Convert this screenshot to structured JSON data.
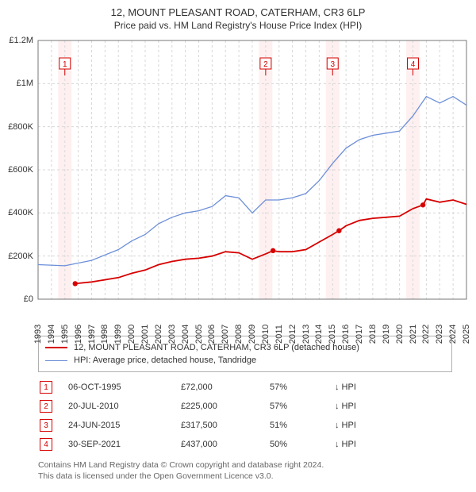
{
  "title_line1": "12, MOUNT PLEASANT ROAD, CATERHAM, CR3 6LP",
  "title_line2": "Price paid vs. HM Land Registry's House Price Index (HPI)",
  "chart": {
    "type": "line",
    "background_color": "#ffffff",
    "plot_border_color": "#777777",
    "grid_color": "#d8d8d8",
    "grid_dash": "3,3",
    "ylabel_fontsize": 11,
    "xlabel_fontsize": 11,
    "ylim": [
      0,
      1200000
    ],
    "ytick_step": 200000,
    "ytick_labels": [
      "£0",
      "£200K",
      "£400K",
      "£600K",
      "£800K",
      "£1M",
      "£1.2M"
    ],
    "xlim": [
      1993,
      2025
    ],
    "xticks": [
      1993,
      1994,
      1995,
      1996,
      1997,
      1998,
      1999,
      2000,
      2001,
      2002,
      2003,
      2004,
      2005,
      2006,
      2007,
      2008,
      2009,
      2010,
      2011,
      2012,
      2013,
      2014,
      2015,
      2016,
      2017,
      2018,
      2019,
      2020,
      2021,
      2022,
      2023,
      2024,
      2025
    ],
    "highlight_bands": {
      "years": [
        1995,
        2010,
        2015,
        2021
      ],
      "fill": "#fde3e3",
      "opacity": 0.55
    },
    "series_hpi": {
      "label": "HPI: Average price, detached house, Tandridge",
      "color": "#6c8fd8",
      "line_width": 1.3,
      "data": [
        [
          1993,
          160000
        ],
        [
          1995,
          155000
        ],
        [
          1997,
          180000
        ],
        [
          1999,
          230000
        ],
        [
          2000,
          270000
        ],
        [
          2001,
          300000
        ],
        [
          2002,
          350000
        ],
        [
          2003,
          380000
        ],
        [
          2004,
          400000
        ],
        [
          2005,
          410000
        ],
        [
          2006,
          430000
        ],
        [
          2007,
          480000
        ],
        [
          2008,
          470000
        ],
        [
          2009,
          400000
        ],
        [
          2010,
          460000
        ],
        [
          2011,
          460000
        ],
        [
          2012,
          470000
        ],
        [
          2013,
          490000
        ],
        [
          2014,
          550000
        ],
        [
          2015,
          630000
        ],
        [
          2016,
          700000
        ],
        [
          2017,
          740000
        ],
        [
          2018,
          760000
        ],
        [
          2019,
          770000
        ],
        [
          2020,
          780000
        ],
        [
          2021,
          850000
        ],
        [
          2022,
          940000
        ],
        [
          2023,
          910000
        ],
        [
          2024,
          940000
        ],
        [
          2025,
          900000
        ]
      ]
    },
    "series_price": {
      "label": "12, MOUNT PLEASANT ROAD, CATERHAM, CR3 6LP (detached house)",
      "color": "#d70000",
      "line_width": 1.8,
      "markers": [
        {
          "year": 1995.77,
          "value": 72000
        },
        {
          "year": 2010.55,
          "value": 225000
        },
        {
          "year": 2015.48,
          "value": 317500
        },
        {
          "year": 2021.75,
          "value": 437000
        }
      ],
      "marker_radius": 3.2,
      "data": [
        [
          1995.77,
          72000
        ],
        [
          1997,
          80000
        ],
        [
          1999,
          100000
        ],
        [
          2000,
          120000
        ],
        [
          2001,
          135000
        ],
        [
          2002,
          160000
        ],
        [
          2003,
          175000
        ],
        [
          2004,
          185000
        ],
        [
          2005,
          190000
        ],
        [
          2006,
          200000
        ],
        [
          2007,
          220000
        ],
        [
          2008,
          215000
        ],
        [
          2009,
          185000
        ],
        [
          2010,
          210000
        ],
        [
          2010.55,
          225000
        ],
        [
          2011,
          220000
        ],
        [
          2012,
          220000
        ],
        [
          2013,
          230000
        ],
        [
          2014,
          265000
        ],
        [
          2015,
          300000
        ],
        [
          2015.48,
          317500
        ],
        [
          2016,
          340000
        ],
        [
          2017,
          365000
        ],
        [
          2018,
          375000
        ],
        [
          2019,
          380000
        ],
        [
          2020,
          385000
        ],
        [
          2021,
          420000
        ],
        [
          2021.75,
          437000
        ],
        [
          2022,
          465000
        ],
        [
          2023,
          450000
        ],
        [
          2024,
          460000
        ],
        [
          2025,
          440000
        ]
      ]
    },
    "event_markers": {
      "border_color": "#d70000",
      "text_color": "#d70000",
      "background": "#ffffff",
      "leader_color": "#d70000",
      "box_size": 14,
      "fontsize": 10,
      "items": [
        {
          "num": "1",
          "year": 1995.0
        },
        {
          "num": "2",
          "year": 2010.0
        },
        {
          "num": "3",
          "year": 2015.0
        },
        {
          "num": "4",
          "year": 2021.0
        }
      ]
    }
  },
  "legend": {
    "rows": [
      {
        "color": "#d70000",
        "width": 2,
        "label": "12, MOUNT PLEASANT ROAD, CATERHAM, CR3 6LP (detached house)"
      },
      {
        "color": "#6c8fd8",
        "width": 1.3,
        "label": "HPI: Average price, detached house, Tandridge"
      }
    ]
  },
  "events": [
    {
      "num": "1",
      "date": "06-OCT-1995",
      "price": "£72,000",
      "pct": "57%",
      "rel": "↓ HPI"
    },
    {
      "num": "2",
      "date": "20-JUL-2010",
      "price": "£225,000",
      "pct": "57%",
      "rel": "↓ HPI"
    },
    {
      "num": "3",
      "date": "24-JUN-2015",
      "price": "£317,500",
      "pct": "51%",
      "rel": "↓ HPI"
    },
    {
      "num": "4",
      "date": "30-SEP-2021",
      "price": "£437,000",
      "pct": "50%",
      "rel": "↓ HPI"
    }
  ],
  "footnote_line1": "Contains HM Land Registry data © Crown copyright and database right 2024.",
  "footnote_line2": "This data is licensed under the Open Government Licence v3.0."
}
